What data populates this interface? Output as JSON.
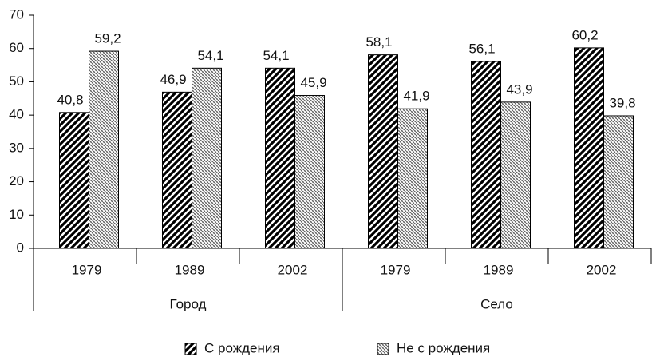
{
  "chart_data": {
    "type": "bar",
    "categories": [
      "1979",
      "1989",
      "2002",
      "1979",
      "1989",
      "2002"
    ],
    "groups": [
      "Город",
      "Село"
    ],
    "series": [
      {
        "name": "С рождения",
        "color": "#000000",
        "values": [
          40.8,
          46.9,
          54.1,
          58.1,
          56.1,
          60.2
        ],
        "value_labels": [
          "40,8",
          "46,9",
          "54,1",
          "58,1",
          "56,1",
          "60,2"
        ]
      },
      {
        "name": "Не с рождения",
        "color": "#333333",
        "values": [
          59.2,
          54.1,
          45.9,
          41.9,
          43.9,
          39.8
        ],
        "value_labels": [
          "59,2",
          "54,1",
          "45,9",
          "41,9",
          "43,9",
          "39,8"
        ]
      }
    ],
    "ylim": [
      0,
      70
    ],
    "yticks": [
      0,
      10,
      20,
      30,
      40,
      50,
      60,
      70
    ],
    "legend": "bottom"
  }
}
